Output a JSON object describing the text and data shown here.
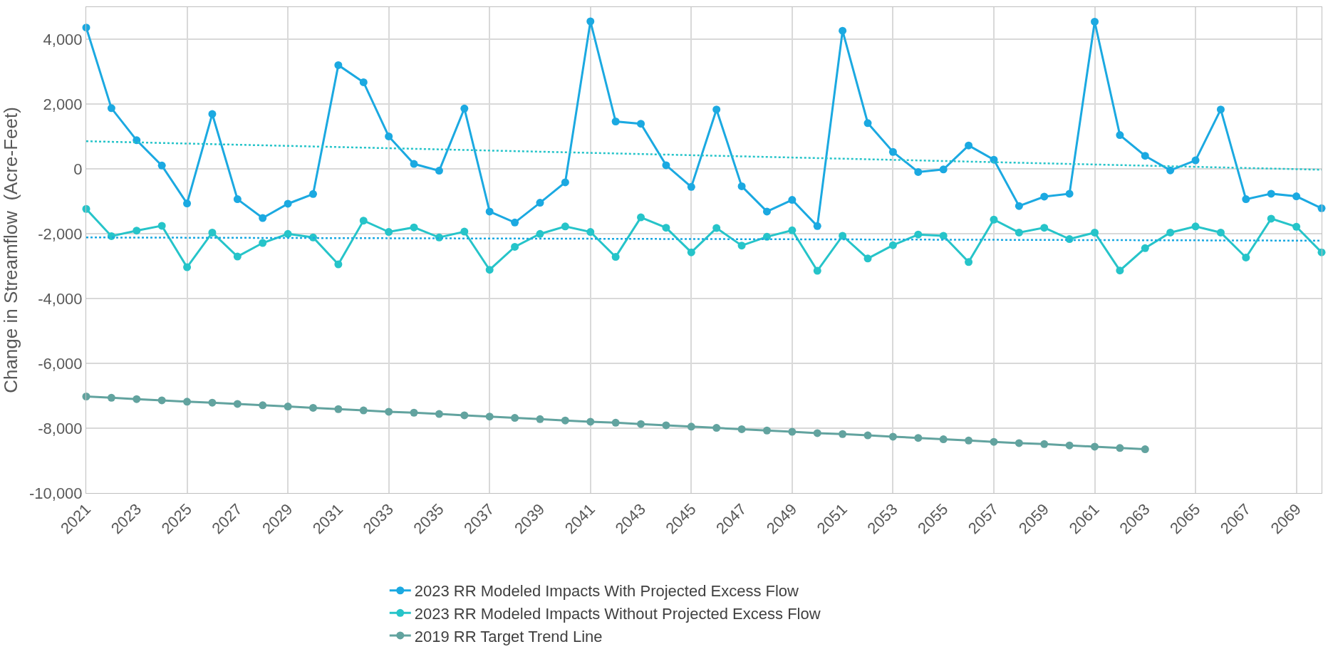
{
  "chart_data": {
    "type": "line",
    "ylabel": "Change in Streamflow  (Acre-Feet)",
    "x": [
      2021,
      2022,
      2023,
      2024,
      2025,
      2026,
      2027,
      2028,
      2029,
      2030,
      2031,
      2032,
      2033,
      2034,
      2035,
      2036,
      2037,
      2038,
      2039,
      2040,
      2041,
      2042,
      2043,
      2044,
      2045,
      2046,
      2047,
      2048,
      2049,
      2050,
      2051,
      2052,
      2053,
      2054,
      2055,
      2056,
      2057,
      2058,
      2059,
      2060,
      2061,
      2062,
      2063,
      2064,
      2065,
      2066,
      2067,
      2068,
      2069,
      2070
    ],
    "series": [
      {
        "name": "2023 RR Modeled Impacts With Projected Excess Flow",
        "color": "#1ba9e1",
        "marker": "circle",
        "line_style": "solid",
        "values": [
          4370,
          1880,
          890,
          110,
          -1060,
          1700,
          -930,
          -1510,
          -1070,
          -770,
          3210,
          2680,
          1010,
          160,
          -50,
          1870,
          -1310,
          -1650,
          -1040,
          -410,
          4560,
          1470,
          1400,
          120,
          -550,
          1840,
          -530,
          -1310,
          -950,
          -1760,
          4270,
          1420,
          530,
          -90,
          -10,
          730,
          290,
          -1140,
          -850,
          -760,
          4550,
          1050,
          410,
          -40,
          270,
          1840,
          -930,
          -760,
          -840,
          -1210
        ]
      },
      {
        "name": "2023 RR Modeled Impacts Without Projected Excess Flow",
        "color": "#26c4c9",
        "marker": "circle",
        "line_style": "solid",
        "values": [
          -1230,
          -2070,
          -1900,
          -1750,
          -3030,
          -1960,
          -2700,
          -2280,
          -2000,
          -2110,
          -2940,
          -1590,
          -1940,
          -1800,
          -2110,
          -1930,
          -3110,
          -2400,
          -2000,
          -1770,
          -1940,
          -2710,
          -1490,
          -1810,
          -2570,
          -1820,
          -2360,
          -2090,
          -1890,
          -3140,
          -2060,
          -2760,
          -2350,
          -2020,
          -2060,
          -2870,
          -1560,
          -1960,
          -1810,
          -2160,
          -1960,
          -3130,
          -2440,
          -1960,
          -1770,
          -1960,
          -2730,
          -1530,
          -1780,
          -2570
        ]
      },
      {
        "name": "2019 RR Target Trend Line",
        "color": "#62a39f",
        "marker": "circle",
        "line_style": "solid",
        "x": [
          2021,
          2022,
          2023,
          2024,
          2025,
          2026,
          2027,
          2028,
          2029,
          2030,
          2031,
          2032,
          2033,
          2034,
          2035,
          2036,
          2037,
          2038,
          2039,
          2040,
          2041,
          2042,
          2043,
          2044,
          2045,
          2046,
          2047,
          2048,
          2049,
          2050,
          2051,
          2052,
          2053,
          2054,
          2055,
          2056,
          2057,
          2058,
          2059,
          2060,
          2061,
          2062,
          2063
        ],
        "values": [
          -7020,
          -7060,
          -7100,
          -7140,
          -7180,
          -7210,
          -7250,
          -7290,
          -7330,
          -7370,
          -7410,
          -7450,
          -7490,
          -7520,
          -7560,
          -7600,
          -7640,
          -7680,
          -7720,
          -7760,
          -7800,
          -7830,
          -7870,
          -7910,
          -7950,
          -7990,
          -8030,
          -8070,
          -8110,
          -8150,
          -8180,
          -8220,
          -8260,
          -8300,
          -8340,
          -8380,
          -8420,
          -8460,
          -8490,
          -8530,
          -8570,
          -8610,
          -8650
        ]
      },
      {
        "color": "#26c4c9",
        "marker": "none",
        "line_style": "dotted",
        "x": [
          2021,
          2070
        ],
        "values": [
          860,
          -20
        ]
      },
      {
        "color": "#1ba9e1",
        "marker": "none",
        "line_style": "dotted",
        "x": [
          2021,
          2070
        ],
        "values": [
          -2110,
          -2210
        ]
      }
    ],
    "xlim": [
      2021,
      2070
    ],
    "xticks": [
      2021,
      2023,
      2025,
      2027,
      2029,
      2031,
      2033,
      2035,
      2037,
      2039,
      2041,
      2043,
      2045,
      2047,
      2049,
      2051,
      2053,
      2055,
      2057,
      2059,
      2061,
      2063,
      2065,
      2067,
      2069
    ],
    "ylim": [
      -10000,
      5000
    ],
    "yticks": [
      {
        "value": -10000,
        "label": "-10,000"
      },
      {
        "value": -8000,
        "label": "-8,000"
      },
      {
        "value": -6000,
        "label": "-6,000"
      },
      {
        "value": -4000,
        "label": "-4,000"
      },
      {
        "value": -2000,
        "label": "-2,000"
      },
      0,
      {
        "value": 2000,
        "label": "2,000"
      },
      {
        "value": 4000,
        "label": "4,000"
      }
    ],
    "grid": true,
    "legend": "bottom"
  }
}
